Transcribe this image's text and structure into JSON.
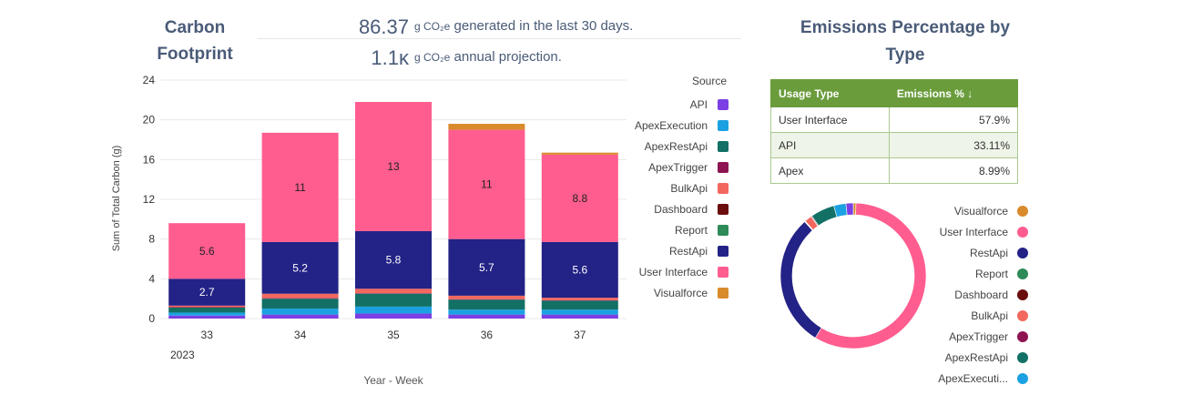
{
  "carbon_title": "Carbon Footprint",
  "kpis": [
    {
      "value": "86.37",
      "unit": "g CO₂e",
      "text": "generated in the last 30 days."
    },
    {
      "value": "1.1ĸ",
      "unit": "g CO₂e",
      "text": "annual projection."
    }
  ],
  "emissions_title": "Emissions Percentage by Type",
  "colors": {
    "API": "#7b3fe4",
    "ApexExecution": "#1ba1e2",
    "ApexRestApi": "#127065",
    "ApexTrigger": "#8d1451",
    "BulkApi": "#f2685f",
    "Dashboard": "#6b0d0d",
    "Report": "#2e8b57",
    "RestApi": "#232286",
    "User Interface": "#ff5d8f",
    "Visualforce": "#d98a2b"
  },
  "legend": {
    "title": "Source",
    "items": [
      "API",
      "ApexExecution",
      "ApexRestApi",
      "ApexTrigger",
      "BulkApi",
      "Dashboard",
      "Report",
      "RestApi",
      "User Interface",
      "Visualforce"
    ]
  },
  "chart_data": [
    {
      "type": "bar",
      "stacked": true,
      "title": "",
      "xlabel": "Year - Week",
      "ylabel": "Sum of Total Carbon (g)",
      "year_label": "2023",
      "categories": [
        "33",
        "34",
        "35",
        "36",
        "37"
      ],
      "ylim": [
        0,
        24
      ],
      "yticks": [
        0,
        4,
        8,
        12,
        16,
        20,
        24
      ],
      "grid": true,
      "legend_position": "right",
      "series": [
        {
          "name": "API",
          "values": [
            0.3,
            0.4,
            0.5,
            0.4,
            0.4
          ]
        },
        {
          "name": "ApexExecution",
          "values": [
            0.3,
            0.6,
            0.7,
            0.5,
            0.5
          ]
        },
        {
          "name": "ApexRestApi",
          "values": [
            0.5,
            1.0,
            1.3,
            1.0,
            0.9
          ]
        },
        {
          "name": "ApexTrigger",
          "values": [
            0.05,
            0.05,
            0.05,
            0.05,
            0.05
          ]
        },
        {
          "name": "BulkApi",
          "values": [
            0.15,
            0.45,
            0.45,
            0.35,
            0.25
          ]
        },
        {
          "name": "Dashboard",
          "values": [
            0,
            0,
            0,
            0,
            0
          ]
        },
        {
          "name": "Report",
          "values": [
            0,
            0,
            0,
            0,
            0
          ]
        },
        {
          "name": "RestApi",
          "values": [
            2.7,
            5.2,
            5.8,
            5.7,
            5.6
          ]
        },
        {
          "name": "User Interface",
          "values": [
            5.6,
            11,
            13,
            11,
            8.8
          ]
        },
        {
          "name": "Visualforce",
          "values": [
            0,
            0,
            0,
            0.6,
            0.2
          ]
        }
      ],
      "data_labels": {
        "RestApi": [
          "2.7",
          "5.2",
          "5.8",
          "5.7",
          "5.6"
        ],
        "User Interface": [
          "5.6",
          "11",
          "13",
          "11",
          "8.8"
        ]
      }
    },
    {
      "type": "table",
      "columns": [
        "Usage Type",
        "Emissions % ↓"
      ],
      "rows": [
        [
          "User Interface",
          "57.9%"
        ],
        [
          "API",
          "33.11%"
        ],
        [
          "Apex",
          "8.99%"
        ]
      ]
    },
    {
      "type": "pie",
      "donut": true,
      "legend_position": "right",
      "slices": [
        {
          "name": "Visualforce",
          "value": 0.6
        },
        {
          "name": "User Interface",
          "value": 57.9
        },
        {
          "name": "RestApi",
          "value": 29.5
        },
        {
          "name": "Report",
          "value": 0.1
        },
        {
          "name": "Dashboard",
          "value": 0.1
        },
        {
          "name": "BulkApi",
          "value": 1.6
        },
        {
          "name": "ApexTrigger",
          "value": 0.2
        },
        {
          "name": "ApexRestApi",
          "value": 5.3
        },
        {
          "name": "ApexExecution",
          "value": 2.7
        },
        {
          "name": "API",
          "value": 1.6
        }
      ],
      "legend_items": [
        "Visualforce",
        "User Interface",
        "RestApi",
        "Report",
        "Dashboard",
        "BulkApi",
        "ApexTrigger",
        "ApexRestApi",
        "ApexExecuti..."
      ]
    }
  ]
}
